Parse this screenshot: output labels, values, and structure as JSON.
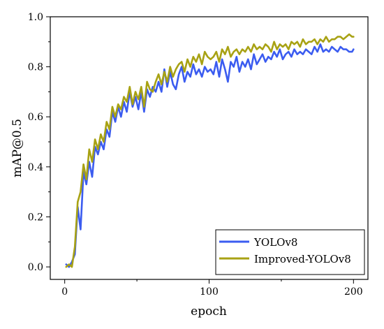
{
  "chart_data": {
    "type": "line",
    "title": "",
    "xlabel": "epoch",
    "ylabel": "mAP@0.5",
    "xlim": [
      -10,
      210
    ],
    "ylim": [
      -0.05,
      1.0
    ],
    "xticks": [
      0,
      100,
      200
    ],
    "xtick_labels": [
      "0",
      "100",
      "200"
    ],
    "yticks": [
      0.0,
      0.2,
      0.4,
      0.6,
      0.8,
      1.0
    ],
    "ytick_labels": [
      "0.0",
      "0.2",
      "0.4",
      "0.6",
      "0.8",
      "1.0"
    ],
    "grid": false,
    "legend_position": "bottom-right",
    "x": [
      1,
      3,
      5,
      7,
      9,
      11,
      13,
      15,
      17,
      19,
      21,
      23,
      25,
      27,
      29,
      31,
      33,
      35,
      37,
      39,
      41,
      43,
      45,
      47,
      49,
      51,
      53,
      55,
      57,
      59,
      61,
      63,
      65,
      67,
      69,
      71,
      73,
      75,
      77,
      79,
      81,
      83,
      85,
      87,
      89,
      91,
      93,
      95,
      97,
      99,
      101,
      103,
      105,
      107,
      109,
      111,
      113,
      115,
      117,
      119,
      121,
      123,
      125,
      127,
      129,
      131,
      133,
      135,
      137,
      139,
      141,
      143,
      145,
      147,
      149,
      151,
      153,
      155,
      157,
      159,
      161,
      163,
      165,
      167,
      169,
      171,
      173,
      175,
      177,
      179,
      181,
      183,
      185,
      187,
      189,
      191,
      193,
      195,
      197,
      199,
      200
    ],
    "series": [
      {
        "name": "YOLOv8",
        "color": "#3b5cf0",
        "values": [
          0.01,
          0.0,
          0.02,
          0.05,
          0.24,
          0.15,
          0.38,
          0.33,
          0.42,
          0.36,
          0.48,
          0.45,
          0.5,
          0.47,
          0.55,
          0.52,
          0.62,
          0.58,
          0.64,
          0.6,
          0.66,
          0.62,
          0.7,
          0.64,
          0.68,
          0.63,
          0.7,
          0.62,
          0.71,
          0.68,
          0.72,
          0.7,
          0.74,
          0.7,
          0.79,
          0.72,
          0.78,
          0.73,
          0.71,
          0.77,
          0.8,
          0.74,
          0.78,
          0.76,
          0.81,
          0.77,
          0.79,
          0.76,
          0.8,
          0.78,
          0.79,
          0.77,
          0.82,
          0.76,
          0.83,
          0.79,
          0.74,
          0.82,
          0.8,
          0.84,
          0.78,
          0.82,
          0.8,
          0.83,
          0.79,
          0.85,
          0.81,
          0.83,
          0.85,
          0.82,
          0.84,
          0.83,
          0.86,
          0.84,
          0.87,
          0.83,
          0.85,
          0.86,
          0.84,
          0.87,
          0.85,
          0.86,
          0.85,
          0.87,
          0.86,
          0.85,
          0.88,
          0.86,
          0.89,
          0.86,
          0.87,
          0.86,
          0.88,
          0.87,
          0.86,
          0.88,
          0.87,
          0.87,
          0.86,
          0.86,
          0.87
        ]
      },
      {
        "name": "Improved-YOLOv8",
        "color": "#a8a214",
        "values": [
          0.0,
          0.01,
          0.0,
          0.08,
          0.26,
          0.3,
          0.41,
          0.35,
          0.47,
          0.42,
          0.51,
          0.47,
          0.53,
          0.5,
          0.58,
          0.55,
          0.64,
          0.6,
          0.65,
          0.63,
          0.68,
          0.66,
          0.72,
          0.65,
          0.7,
          0.67,
          0.72,
          0.64,
          0.74,
          0.71,
          0.7,
          0.74,
          0.77,
          0.73,
          0.78,
          0.74,
          0.8,
          0.76,
          0.79,
          0.81,
          0.82,
          0.78,
          0.83,
          0.8,
          0.84,
          0.82,
          0.85,
          0.81,
          0.86,
          0.84,
          0.83,
          0.84,
          0.86,
          0.82,
          0.87,
          0.85,
          0.88,
          0.84,
          0.86,
          0.87,
          0.85,
          0.87,
          0.86,
          0.88,
          0.86,
          0.89,
          0.87,
          0.88,
          0.87,
          0.89,
          0.88,
          0.86,
          0.9,
          0.87,
          0.89,
          0.88,
          0.89,
          0.87,
          0.9,
          0.89,
          0.9,
          0.88,
          0.91,
          0.89,
          0.9,
          0.9,
          0.91,
          0.89,
          0.91,
          0.9,
          0.92,
          0.9,
          0.91,
          0.91,
          0.92,
          0.92,
          0.91,
          0.92,
          0.93,
          0.92,
          0.92
        ]
      }
    ]
  }
}
